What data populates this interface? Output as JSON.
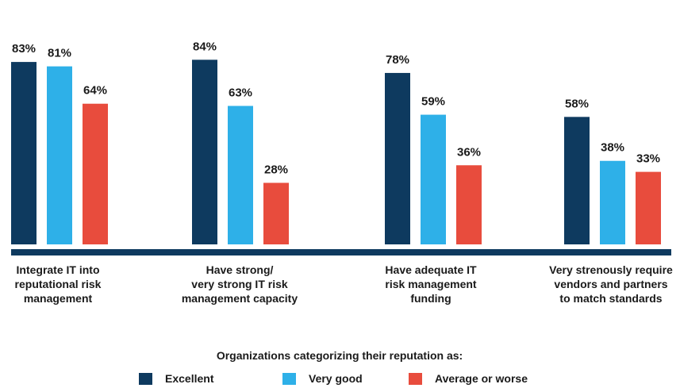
{
  "chart_data": {
    "type": "bar",
    "categories": [
      [
        "Integrate IT into",
        "reputational risk",
        "management"
      ],
      [
        "Have strong/",
        "very strong IT risk",
        "management capacity"
      ],
      [
        "Have adequate IT",
        "risk management",
        "funding"
      ],
      [
        "Very strenously require",
        "vendors and partners",
        "to match standards"
      ]
    ],
    "series": [
      {
        "name": "Excellent",
        "color": "#0e3a5f",
        "values": [
          83,
          84,
          78,
          58
        ],
        "labels": [
          "83%",
          "84%",
          "78%",
          "58%"
        ]
      },
      {
        "name": "Very good",
        "color": "#2eb0e8",
        "values": [
          81,
          63,
          59,
          38
        ],
        "labels": [
          "81%",
          "63%",
          "59%",
          "38%"
        ]
      },
      {
        "name": "Average or worse",
        "color": "#e84c3d",
        "values": [
          64,
          28,
          36,
          33
        ],
        "labels": [
          "64%",
          "28%",
          "36%",
          "33%"
        ]
      }
    ],
    "legend_title": "Organizations categorizing their reputation as:",
    "legend_position": "bottom-center",
    "baseline_color": "#0e3a5f",
    "ylim": [
      0,
      100
    ],
    "grid": false,
    "title": "",
    "xlabel": "",
    "ylabel": ""
  }
}
